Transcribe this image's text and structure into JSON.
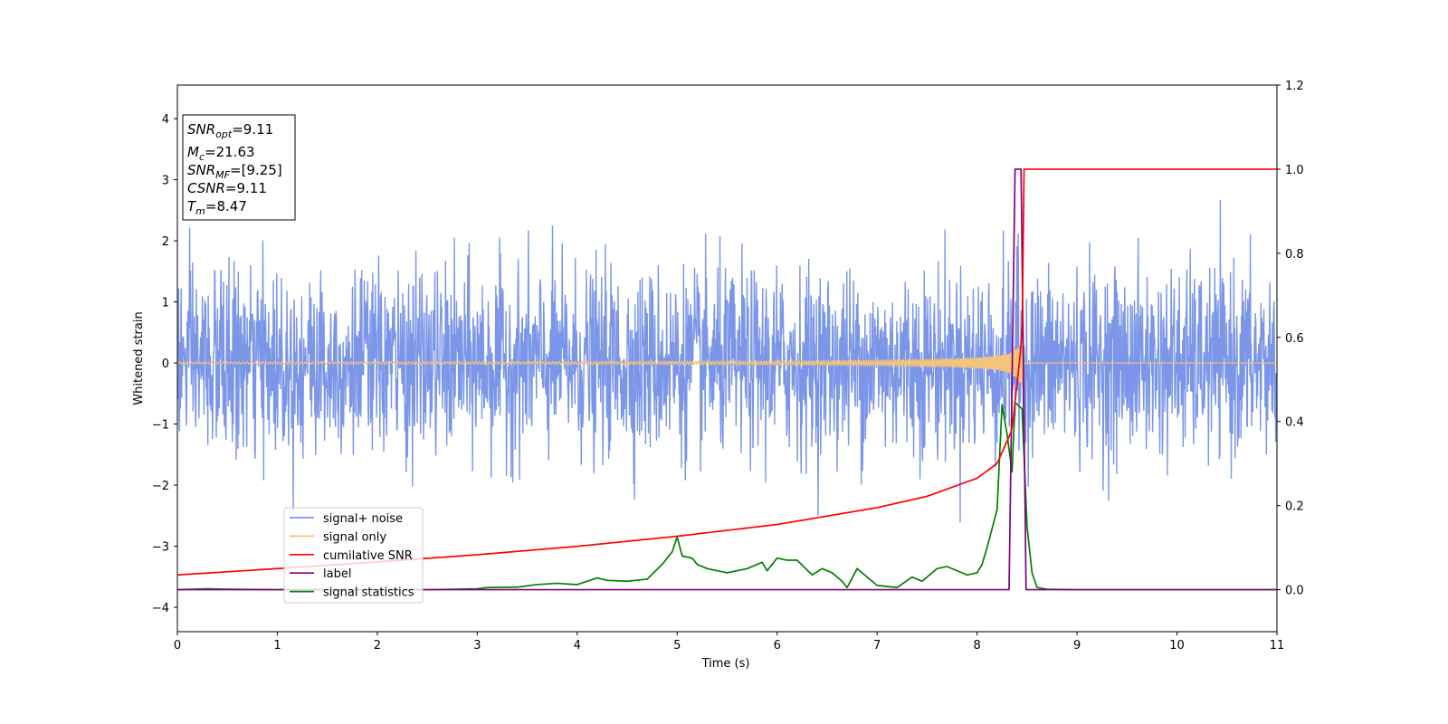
{
  "chart_data": {
    "type": "line",
    "xlabel": "Time (s)",
    "ylabel": "Whitened strain",
    "xlim": [
      0,
      11
    ],
    "ylim_left": [
      -4.4,
      4.55
    ],
    "ylim_right": [
      -0.1,
      1.2
    ],
    "x_ticks": [
      "0",
      "1",
      "2",
      "3",
      "4",
      "5",
      "6",
      "7",
      "8",
      "9",
      "10",
      "11"
    ],
    "y_ticks_left": [
      "−4",
      "−3",
      "−2",
      "−1",
      "0",
      "1",
      "2",
      "3",
      "4"
    ],
    "y_ticks_right": [
      "0.0",
      "0.2",
      "0.4",
      "0.6",
      "0.8",
      "1.0",
      "1.2"
    ],
    "legend_position": "lower-left",
    "info_box": {
      "position": "top-left",
      "snr_opt": "=9.11",
      "mc": "=21.63",
      "snr_mf": "=[9.25]",
      "csnr": "=9.11",
      "tm": "=8.47"
    },
    "series": [
      {
        "name": "signal+ noise",
        "axis": "left",
        "color": "#7b96e8",
        "description": "whitened noise, std ~0.75, range about -4 to 4.2",
        "noise_std": 0.75,
        "x_range": [
          0,
          11
        ]
      },
      {
        "name": "signal only",
        "axis": "left",
        "color": "#f3c47a",
        "description": "chirp waveform growing until merger",
        "merger_time": 8.47,
        "peak_amplitude": 0.5
      },
      {
        "name": "cumilative SNR",
        "axis": "right",
        "color": "#ff0000",
        "x": [
          0,
          1,
          2,
          3,
          4,
          5,
          6,
          7,
          7.5,
          8,
          8.2,
          8.35,
          8.45,
          8.47,
          8.5,
          11
        ],
        "values": [
          0.035,
          0.05,
          0.066,
          0.083,
          0.103,
          0.127,
          0.155,
          0.195,
          0.222,
          0.265,
          0.3,
          0.38,
          0.6,
          1.0,
          1.0,
          1.0
        ]
      },
      {
        "name": "label",
        "axis": "right",
        "color": "#800080",
        "x": [
          0,
          8.32,
          8.38,
          8.44,
          8.49,
          11
        ],
        "values": [
          0,
          0,
          1.0,
          1.0,
          0,
          0
        ]
      },
      {
        "name": "signal statistics",
        "axis": "right",
        "color": "#008000",
        "x": [
          0,
          0.3,
          0.5,
          1,
          2,
          2.5,
          3,
          3.1,
          3.4,
          3.6,
          3.8,
          4,
          4.2,
          4.3,
          4.5,
          4.7,
          4.85,
          4.95,
          5.0,
          5.05,
          5.15,
          5.2,
          5.3,
          5.5,
          5.7,
          5.85,
          5.9,
          6.0,
          6.1,
          6.2,
          6.35,
          6.45,
          6.55,
          6.65,
          6.7,
          6.8,
          7.0,
          7.2,
          7.35,
          7.45,
          7.6,
          7.7,
          7.8,
          7.9,
          8.0,
          8.05,
          8.1,
          8.2,
          8.25,
          8.3,
          8.35,
          8.38,
          8.45,
          8.5,
          8.55,
          8.6,
          8.7,
          9,
          11
        ],
        "values": [
          0.0,
          0.002,
          0.001,
          0.0,
          0.0,
          0.0,
          0.002,
          0.005,
          0.006,
          0.012,
          0.015,
          0.012,
          0.028,
          0.022,
          0.02,
          0.025,
          0.06,
          0.09,
          0.125,
          0.08,
          0.075,
          0.06,
          0.05,
          0.04,
          0.05,
          0.065,
          0.045,
          0.075,
          0.07,
          0.07,
          0.035,
          0.05,
          0.04,
          0.02,
          0.005,
          0.05,
          0.01,
          0.005,
          0.03,
          0.02,
          0.05,
          0.055,
          0.045,
          0.035,
          0.04,
          0.06,
          0.1,
          0.19,
          0.44,
          0.37,
          0.28,
          0.445,
          0.43,
          0.15,
          0.04,
          0.005,
          0.001,
          0.0,
          0.0
        ]
      }
    ]
  }
}
